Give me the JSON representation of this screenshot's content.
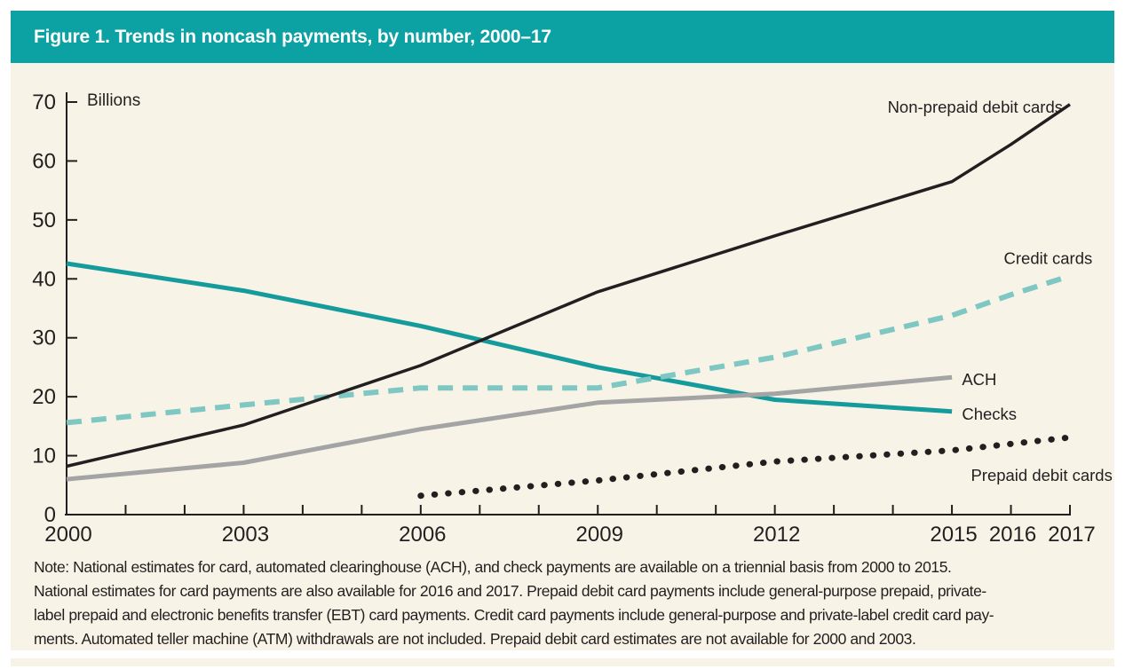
{
  "figure": {
    "title": "Figure 1. Trends in noncash payments, by number, 2000–17",
    "note_lines": [
      "Note: National estimates for card, automated clearinghouse (ACH), and check payments are available on a triennial basis from 2000 to 2015.",
      "National estimates for card payments are also available for 2016 and 2017. Prepaid debit card payments include general-purpose prepaid, private-",
      "label prepaid and electronic benefits transfer (EBT) card payments. Credit card payments include general-purpose and private-label credit card pay-",
      "ments. Automated teller machine (ATM) withdrawals are not included. Prepaid debit card estimates are not available for 2000 and 2003."
    ]
  },
  "colors": {
    "header_teal": "#0ca1a2",
    "panel_cream": "#f8f3e7",
    "axis_black": "#231f20",
    "checks_teal": "#169b9c",
    "credit_light_teal": "#7ec7c3",
    "ach_gray": "#a4a4a4",
    "title_text": "#ffffff"
  },
  "chart_data": {
    "type": "line",
    "title": "Figure 1. Trends in noncash payments, by number, 2000–17",
    "unit_label": "Billions",
    "xlabel": "",
    "ylabel": "Billions",
    "xlim": [
      2000,
      2017
    ],
    "ylim": [
      0,
      70
    ],
    "y_ticks": [
      0,
      10,
      20,
      30,
      40,
      50,
      60,
      70
    ],
    "x_ticks_labeled": [
      2000,
      2003,
      2006,
      2009,
      2012,
      2015,
      2016,
      2017
    ],
    "x_tick_minor_every_years": 1,
    "grid": false,
    "legend": "inline-labels-at-line-ends",
    "series": [
      {
        "name": "Checks",
        "line_style": "solid",
        "color": "#169b9c",
        "width": 5,
        "x": [
          2000,
          2003,
          2006,
          2009,
          2012,
          2015
        ],
        "values": [
          42.6,
          38.0,
          32.0,
          25.0,
          19.5,
          17.5
        ],
        "label_pos": {
          "year": 2015.17,
          "value": 16.1,
          "anchor": "start"
        }
      },
      {
        "name": "Credit cards",
        "line_style": "dashed",
        "color": "#7ec7c3",
        "width": 6,
        "x": [
          2000,
          2003,
          2006,
          2009,
          2012,
          2015,
          2016,
          2017
        ],
        "values": [
          15.6,
          18.6,
          21.5,
          21.5,
          26.7,
          33.8,
          37.3,
          40.5
        ],
        "label_pos": {
          "year": 2017.38,
          "value": 42.5,
          "anchor": "end"
        }
      },
      {
        "name": "ACH",
        "line_style": "solid",
        "color": "#a4a4a4",
        "width": 5,
        "x": [
          2000,
          2003,
          2006,
          2009,
          2012,
          2015
        ],
        "values": [
          6.0,
          8.8,
          14.5,
          19.0,
          20.5,
          23.3
        ],
        "label_pos": {
          "year": 2015.17,
          "value": 22.0,
          "anchor": "start"
        }
      },
      {
        "name": "Prepaid debit cards",
        "line_style": "dotted",
        "color": "#231f20",
        "width": 7,
        "x": [
          2006,
          2009,
          2012,
          2015,
          2016,
          2017
        ],
        "values": [
          3.2,
          5.8,
          9.0,
          10.9,
          12.0,
          13.1
        ],
        "label_pos": {
          "year": 2017.72,
          "value": 5.7,
          "anchor": "end"
        }
      },
      {
        "name": "Non-prepaid debit cards",
        "line_style": "solid",
        "color": "#231f20",
        "width": 3.5,
        "x": [
          2000,
          2003,
          2006,
          2009,
          2012,
          2015,
          2016,
          2017
        ],
        "values": [
          8.2,
          15.2,
          25.3,
          37.8,
          47.3,
          56.5,
          62.8,
          69.6
        ],
        "label_pos": {
          "year": 2016.88,
          "value": 68.2,
          "anchor": "end"
        }
      }
    ]
  }
}
